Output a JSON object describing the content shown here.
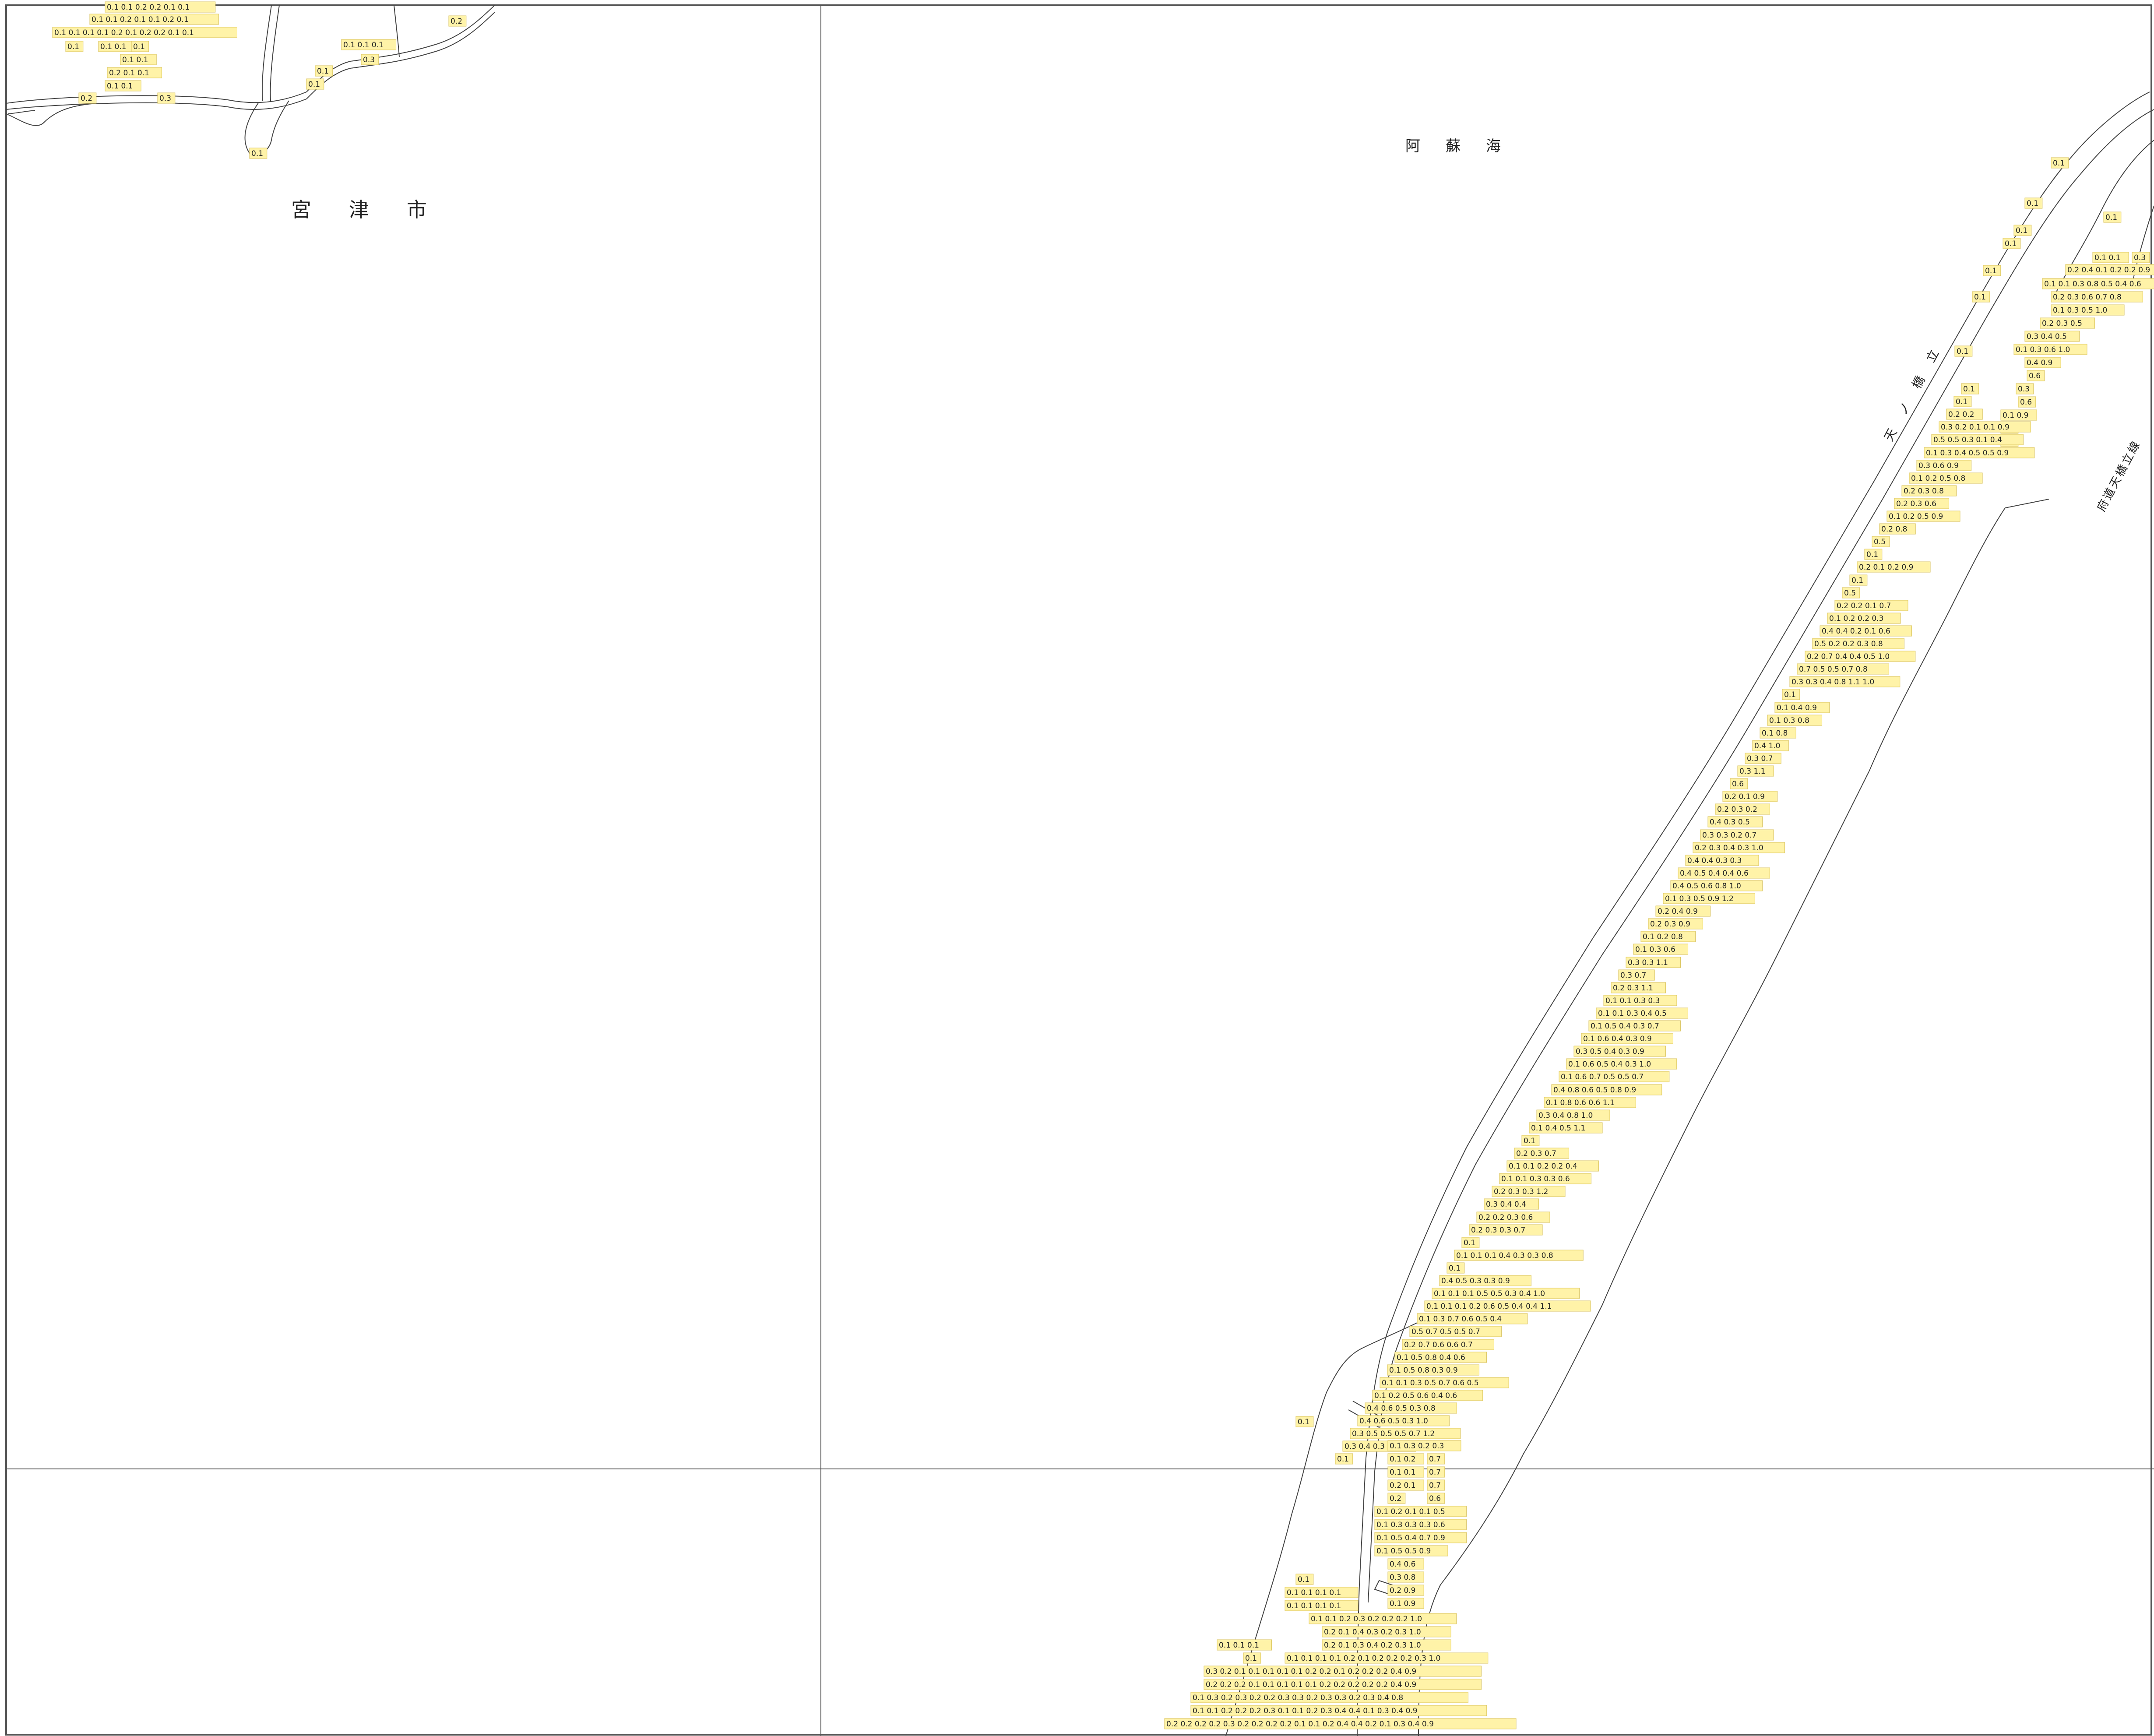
{
  "map": {
    "place_names": {
      "city": "宮　津　市",
      "sea": "阿　蘇　海",
      "sandbar": "天　ノ　橋　立",
      "road": "府道天橋立線"
    },
    "colors": {
      "background": "#ffffff",
      "label_fill": "#fff3a8",
      "label_border": "#d9c25a",
      "line": "#333333",
      "grid": "#555555"
    },
    "depth_labels": {
      "northwest": [
        "0.1 0.1 0.2 0.2 0.1 0.1",
        "0.1 0.1 0.2 0.1 0.1 0.2 0.1",
        "0.1 0.1 0.1 0.1 0.2 0.1 0.2 0.2 0.1 0.1",
        "0.1",
        "0.1 0.1",
        "0.1",
        "0.1 0.1",
        "0.2 0.1 0.1",
        "0.1 0.1",
        "0.2",
        "0.3",
        "0.1 0.1 0.1",
        "0.3",
        "0.1",
        "0.1",
        "0.2",
        "0.1"
      ],
      "north_bank": [
        "0.1",
        "0.1",
        "0.1",
        "0.1",
        "0.1",
        "0.1",
        "0.1",
        "0.1",
        "0.1 0.1",
        "0.3",
        "0.2 0.4 0.1 0.2 0.2 0.9",
        "0.1 0.1 0.3 0.8 0.5 0.4 0.6",
        "0.2 0.3 0.6 0.7 0.8",
        "0.1 0.3 0.5 1.0",
        "0.2 0.3 0.5",
        "0.3 0.4 0.5",
        "0.1 0.3 0.6 1.0",
        "0.4 0.9",
        "0.6",
        "0.3",
        "0.6",
        "0.1 0.9",
        "0.3",
        "0.7"
      ],
      "sandbar": [
        "0.1",
        "0.1",
        "0.2 0.2",
        "0.3 0.2 0.1 0.1 0.9",
        "0.5 0.5 0.3 0.1 0.4",
        "0.1 0.3 0.4 0.5 0.5 0.9",
        "0.3 0.6 0.9",
        "0.1 0.2 0.5 0.8",
        "0.2 0.3 0.8",
        "0.2 0.3 0.6",
        "0.1 0.2 0.5 0.9",
        "0.2 0.8",
        "0.5",
        "0.1",
        "0.2 0.1 0.2 0.9",
        "0.1",
        "0.5",
        "0.2 0.2 0.1 0.7",
        "0.1 0.2 0.2 0.3",
        "0.4 0.4 0.2 0.1 0.6",
        "0.5 0.2 0.2 0.3 0.8",
        "0.2 0.7 0.4 0.4 0.5 1.0",
        "0.7 0.5 0.5 0.7 0.8",
        "0.3 0.3 0.4 0.8 1.1 1.0",
        "0.1",
        "0.1 0.4 0.9",
        "0.1 0.3 0.8",
        "0.1 0.8",
        "0.4 1.0",
        "0.3 0.7",
        "0.3 1.1",
        "0.6",
        "0.2 0.1 0.9",
        "0.2 0.3 0.2",
        "0.4 0.3 0.5",
        "0.3 0.3 0.2 0.7",
        "0.2 0.3 0.4 0.3 1.0",
        "0.4 0.4 0.3 0.3",
        "0.4 0.5 0.4 0.4 0.6",
        "0.4 0.5 0.6 0.8 1.0",
        "0.1 0.3 0.5 0.9 1.2",
        "0.2 0.4 0.9",
        "0.2 0.3 0.9",
        "0.1 0.2 0.8",
        "0.1 0.3 0.6",
        "0.3 0.3 1.1",
        "0.3 0.7",
        "0.2 0.3 1.1",
        "0.1 0.1 0.3 0.3",
        "0.1 0.1 0.3 0.4 0.5",
        "0.1 0.5 0.4 0.3 0.7",
        "0.1 0.6 0.4 0.3 0.9",
        "0.3 0.5 0.4 0.3 0.9",
        "0.1 0.6 0.5 0.4 0.3 1.0",
        "0.1 0.6 0.7 0.5 0.5 0.7",
        "0.4 0.8 0.6 0.5 0.8 0.9",
        "0.1 0.8 0.6 0.6 1.1",
        "0.3 0.4 0.8 1.0",
        "0.1 0.4 0.5 1.1",
        "0.1",
        "0.2 0.3 0.7",
        "0.1 0.1 0.2 0.2 0.4",
        "0.1 0.1 0.3 0.3 0.6",
        "0.2 0.3 0.3 1.2",
        "0.3 0.4 0.4",
        "0.2 0.2 0.3 0.6",
        "0.2 0.3 0.3 0.7",
        "0.1",
        "0.1 0.1 0.1 0.4 0.3 0.3 0.8",
        "0.1",
        "0.4 0.5 0.3 0.3 0.9",
        "0.1 0.1 0.1 0.5 0.5 0.3 0.4 1.0",
        "0.1 0.1 0.1 0.2 0.6 0.5 0.4 0.4 1.1",
        "0.1 0.3 0.7 0.6 0.5 0.4",
        "0.5 0.7 0.5 0.5 0.7",
        "0.2 0.7 0.6 0.6 0.7",
        "0.1 0.5 0.8 0.4 0.6",
        "0.1 0.5 0.8 0.3 0.9",
        "0.1 0.1 0.3 0.5 0.7 0.6 0.5",
        "0.1 0.2 0.5 0.6 0.4 0.6",
        "0.4 0.6 0.5 0.3 0.8",
        "0.4 0.6 0.5 0.3 1.0",
        "0.3 0.5 0.5 0.5 0.7 1.2",
        "0.3 0.4 0.3 0.8",
        "0.1"
      ],
      "south": [
        "0.1 0.3 0.2 0.3",
        "0.1 0.2",
        "0.7",
        "0.1 0.1",
        "0.7",
        "0.2 0.1",
        "0.7",
        "0.2",
        "0.6",
        "0.1 0.2 0.1 0.1 0.5",
        "0.1 0.3 0.3 0.3 0.6",
        "0.1 0.5 0.4 0.7 0.9",
        "0.1 0.5 0.5 0.9",
        "0.4 0.6",
        "0.3 0.8",
        "0.2 0.9",
        "0.1 0.9",
        "0.1",
        "0.1 0.1 0.1 0.1",
        "0.1 0.1 0.1 0.1",
        "0.1 0.1 0.2 0.3 0.2 0.2 0.2 1.0",
        "0.2 0.1 0.4 0.3 0.2 0.3 1.0",
        "0.2 0.1 0.3 0.4 0.2 0.3 1.0",
        "0.1 0.1 0.1",
        "0.1",
        "0.1 0.1 0.1 0.1 0.2 0.1 0.2 0.2 0.2 0.3 1.0",
        "0.3 0.2 0.1 0.1 0.1 0.1 0.1 0.2 0.2 0.1 0.2 0.2 0.2 0.4 0.9",
        "0.2 0.2 0.2 0.1 0.1 0.1 0.1 0.1 0.2 0.2 0.2 0.2 0.2 0.4 0.9",
        "0.1 0.3 0.2 0.3 0.2 0.2 0.3 0.3 0.2 0.3 0.3 0.2 0.3 0.4 0.8",
        "0.1 0.1 0.2 0.2 0.2 0.3 0.1 0.1 0.2 0.3 0.4 0.4 0.1 0.3 0.4 0.9",
        "0.2 0.2 0.2 0.2 0.3 0.2 0.2 0.2 0.2 0.1 0.1 0.2 0.4 0.4 0.2 0.1 0.3 0.4 0.9"
      ]
    }
  }
}
